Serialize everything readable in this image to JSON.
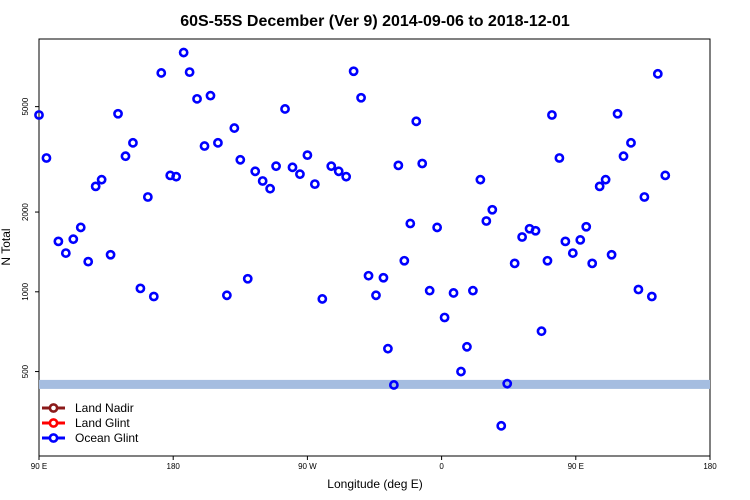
{
  "chart_data": {
    "type": "scatter",
    "title": "60S-55S December (Ver 9)   2014-09-06 to 2018-12-01",
    "xlabel": "Longitude (deg E)",
    "ylabel": "N Total",
    "y_scale": "log",
    "ylim": [
      240,
      9000
    ],
    "x_ticks": [
      "90 E",
      "180",
      "90 W",
      "0",
      "90 E",
      "180"
    ],
    "y_ticks": [
      500,
      1000,
      2000,
      5000
    ],
    "reference_band": {
      "color": "#a5bde0",
      "y": [
        430,
        465
      ]
    },
    "series": [
      {
        "name": "Land Nadir",
        "color": "#8b1a1a",
        "points": []
      },
      {
        "name": "Land Glint",
        "color": "#ff0000",
        "points": []
      },
      {
        "name": "Ocean Glint",
        "color": "#0000ff",
        "points": [
          [
            90,
            4650
          ],
          [
            95,
            3200
          ],
          [
            103,
            1550
          ],
          [
            108,
            1400
          ],
          [
            113,
            1580
          ],
          [
            118,
            1750
          ],
          [
            123,
            1300
          ],
          [
            128,
            2500
          ],
          [
            132,
            2650
          ],
          [
            138,
            1380
          ],
          [
            143,
            4700
          ],
          [
            148,
            3250
          ],
          [
            153,
            3650
          ],
          [
            158,
            1030
          ],
          [
            163,
            2280
          ],
          [
            167,
            960
          ],
          [
            172,
            6700
          ],
          [
            178,
            2750
          ],
          [
            182,
            2720
          ],
          [
            187,
            8000
          ],
          [
            191,
            6750
          ],
          [
            196,
            5350
          ],
          [
            201,
            3550
          ],
          [
            205,
            5500
          ],
          [
            210,
            3650
          ],
          [
            216,
            970
          ],
          [
            221,
            4150
          ],
          [
            225,
            3150
          ],
          [
            230,
            1120
          ],
          [
            235,
            2850
          ],
          [
            240,
            2620
          ],
          [
            245,
            2450
          ],
          [
            249,
            2980
          ],
          [
            255,
            4900
          ],
          [
            260,
            2950
          ],
          [
            265,
            2780
          ],
          [
            270,
            3280
          ],
          [
            275,
            2550
          ],
          [
            280,
            940
          ],
          [
            286,
            2980
          ],
          [
            291,
            2850
          ],
          [
            296,
            2720
          ],
          [
            301,
            6800
          ],
          [
            306,
            5400
          ],
          [
            311,
            1150
          ],
          [
            316,
            970
          ],
          [
            321,
            1130
          ],
          [
            324,
            610
          ],
          [
            328,
            445
          ],
          [
            331,
            3000
          ],
          [
            335,
            1310
          ],
          [
            339,
            1810
          ],
          [
            343,
            4400
          ],
          [
            347,
            3050
          ],
          [
            352,
            1010
          ],
          [
            357,
            1750
          ],
          [
            362,
            800
          ],
          [
            368,
            990
          ],
          [
            373,
            500
          ],
          [
            377,
            620
          ],
          [
            381,
            1010
          ],
          [
            386,
            2650
          ],
          [
            390,
            1850
          ],
          [
            394,
            2040
          ],
          [
            400,
            312
          ],
          [
            404,
            450
          ],
          [
            409,
            1280
          ],
          [
            414,
            1610
          ],
          [
            419,
            1730
          ],
          [
            423,
            1700
          ],
          [
            427,
            710
          ],
          [
            431,
            1310
          ],
          [
            434,
            4650
          ],
          [
            439,
            3200
          ],
          [
            443,
            1550
          ],
          [
            448,
            1400
          ],
          [
            453,
            1570
          ],
          [
            457,
            1760
          ],
          [
            461,
            1280
          ],
          [
            466,
            2500
          ],
          [
            470,
            2650
          ],
          [
            474,
            1380
          ],
          [
            478,
            4700
          ],
          [
            482,
            3250
          ],
          [
            487,
            3650
          ],
          [
            492,
            1020
          ],
          [
            496,
            2280
          ],
          [
            501,
            960
          ],
          [
            505,
            6650
          ],
          [
            510,
            2750
          ]
        ]
      }
    ]
  }
}
